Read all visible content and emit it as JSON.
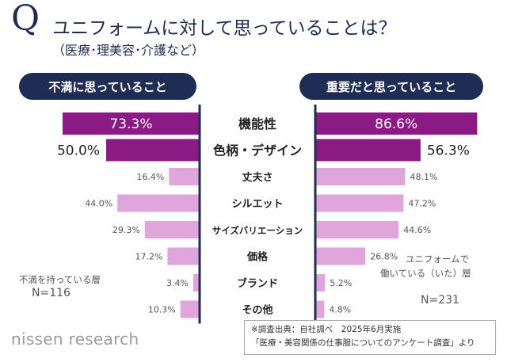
{
  "header": {
    "q_mark": "Q",
    "title": "ユニフォームに対して思っていることは？",
    "subtitle": "（医療･理美容･介護など）"
  },
  "chart_data": {
    "type": "bar",
    "categories": [
      "機能性",
      "色柄・デザイン",
      "丈夫さ",
      "シルエット",
      "サイズバリエーション",
      "価格",
      "ブランド",
      "その他"
    ],
    "series": [
      {
        "name": "不満に思っていること",
        "values": [
          73.3,
          50.0,
          16.4,
          44.0,
          29.3,
          17.2,
          3.4,
          10.3
        ],
        "labels": [
          "73.3%",
          "50.0%",
          "16.4%",
          "44.0%",
          "29.3%",
          "17.2%",
          "3.4%",
          "10.3%"
        ]
      },
      {
        "name": "重要だと思っていること",
        "values": [
          86.6,
          56.3,
          48.1,
          47.2,
          44.6,
          26.8,
          5.2,
          4.8
        ],
        "labels": [
          "86.6%",
          "56.3%",
          "48.1%",
          "47.2%",
          "44.6%",
          "26.8%",
          "5.2%",
          "4.8%"
        ]
      }
    ],
    "highlight_count": 2,
    "colors": {
      "highlight": "#8b1a84",
      "normal": "#e0a6dc",
      "highlight_text_inside": "#ffffff",
      "label_text": "#555555",
      "axis": "#1f2d55",
      "header_pill": "#1f2d55"
    }
  },
  "notes": {
    "left_label": "不満を持っている層",
    "left_n": "N=116",
    "right_label_1": "ユニフォームで",
    "right_label_2": "働いている（いた）層",
    "right_n": "N=231"
  },
  "source": {
    "line1": "※調査出典：自社調べ　2025年6月実施",
    "line2": "「医療・美容関係の仕事服についてのアンケート調査」より"
  },
  "brand": {
    "text": "nissen research"
  }
}
